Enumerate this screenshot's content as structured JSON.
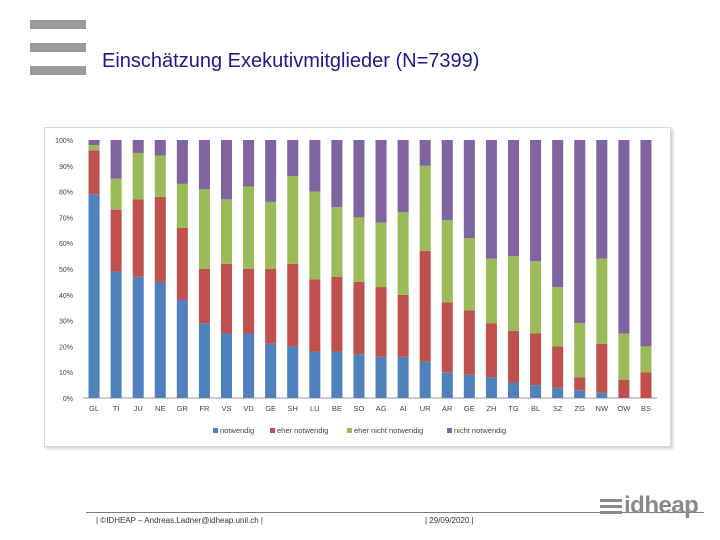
{
  "slide": {
    "title": "Einschätzung Exekutivmitglieder (N=7399)",
    "footer_left": "| ©IDHEAP – Andreas.Ladner@idheap.unil.ch |",
    "footer_date": "| 29/09/2020 |",
    "logo_text": "idheap"
  },
  "chart_data": {
    "type": "bar",
    "stacked": true,
    "percent": true,
    "title": "",
    "xlabel": "",
    "ylabel": "",
    "ylim": [
      0,
      100
    ],
    "yticks": [
      "0%",
      "10%",
      "20%",
      "30%",
      "40%",
      "50%",
      "60%",
      "70%",
      "80%",
      "90%",
      "100%"
    ],
    "categories": [
      "GL",
      "TI",
      "JU",
      "NE",
      "GR",
      "FR",
      "VS",
      "VD",
      "GE",
      "SH",
      "LU",
      "BE",
      "SO",
      "AG",
      "AI",
      "UR",
      "AR",
      "GE",
      "ZH",
      "TG",
      "BL",
      "SZ",
      "ZG",
      "NW",
      "OW",
      "BS"
    ],
    "series": [
      {
        "name": "notwendig",
        "color": "#4f81bd",
        "values": [
          79,
          49,
          47,
          45,
          38,
          29,
          25,
          25,
          21,
          20,
          18,
          18,
          17,
          16,
          16,
          14,
          10,
          9,
          8,
          6,
          5,
          4,
          3,
          2,
          0,
          0
        ]
      },
      {
        "name": "eher notwendig",
        "color": "#c0504d",
        "values": [
          17,
          24,
          30,
          33,
          28,
          21,
          27,
          25,
          29,
          32,
          28,
          29,
          28,
          27,
          24,
          43,
          27,
          25,
          21,
          20,
          20,
          16,
          5,
          19,
          7,
          10
        ]
      },
      {
        "name": "eher nicht notwendig",
        "color": "#9bbb59",
        "values": [
          2,
          12,
          18,
          16,
          17,
          31,
          25,
          32,
          26,
          34,
          34,
          27,
          25,
          25,
          32,
          33,
          32,
          28,
          25,
          29,
          28,
          23,
          21,
          33,
          18,
          10
        ]
      },
      {
        "name": "nicht notwendig",
        "color": "#8064a2",
        "values": [
          2,
          15,
          5,
          6,
          17,
          19,
          23,
          18,
          24,
          14,
          20,
          26,
          30,
          32,
          28,
          10,
          31,
          38,
          46,
          45,
          47,
          57,
          71,
          46,
          75,
          80
        ]
      }
    ],
    "legend_position": "bottom",
    "grid": false
  }
}
